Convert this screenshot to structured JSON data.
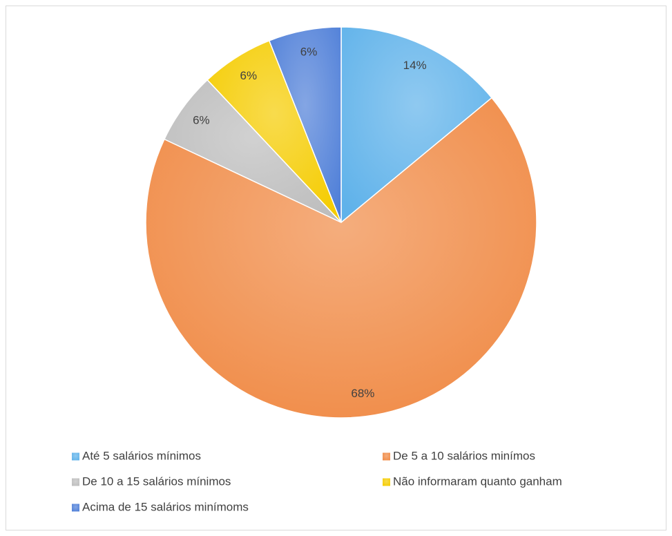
{
  "chart_data": {
    "type": "pie",
    "categories": [
      "Até 5 salários mínimos",
      "De 5 a 10 salários minímos",
      "De 10 a 15 salários mínimos",
      "Não informaram quanto ganham",
      "Acima de 15 salários minímoms"
    ],
    "values": [
      14,
      68,
      6,
      6,
      6
    ],
    "value_labels": [
      "14%",
      "68%",
      "6%",
      "6%",
      "6%"
    ],
    "colors": [
      "#5fb2ea",
      "#f08a45",
      "#bdbdbd",
      "#f5cc00",
      "#4f7fd8"
    ],
    "legend": "bottom"
  }
}
